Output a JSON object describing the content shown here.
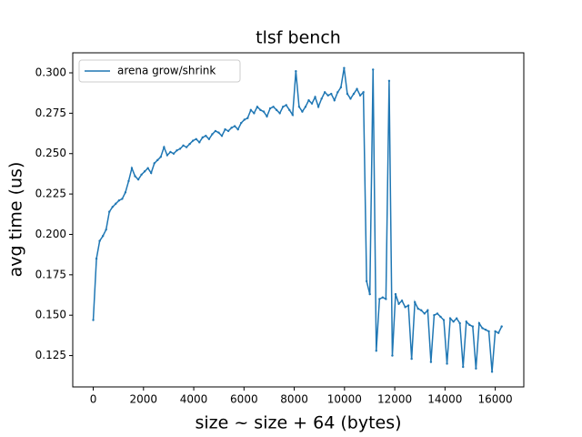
{
  "chart_data": {
    "type": "line",
    "title": "tlsf bench",
    "x_label": "size ~ size + 64 (bytes)",
    "y_label": "avg time (us)",
    "x": [
      0,
      128,
      256,
      384,
      512,
      640,
      768,
      896,
      1024,
      1152,
      1280,
      1408,
      1536,
      1664,
      1792,
      1920,
      2048,
      2176,
      2304,
      2432,
      2560,
      2688,
      2816,
      2944,
      3072,
      3200,
      3328,
      3456,
      3584,
      3712,
      3840,
      3968,
      4096,
      4224,
      4352,
      4480,
      4608,
      4736,
      4864,
      4992,
      5120,
      5248,
      5376,
      5504,
      5632,
      5760,
      5888,
      6016,
      6144,
      6272,
      6400,
      6528,
      6656,
      6784,
      6912,
      7040,
      7168,
      7296,
      7424,
      7552,
      7680,
      7808,
      7936,
      8064,
      8192,
      8320,
      8448,
      8576,
      8704,
      8832,
      8960,
      9088,
      9216,
      9344,
      9472,
      9600,
      9728,
      9856,
      9984,
      10112,
      10240,
      10368,
      10496,
      10624,
      10752,
      10880,
      11008,
      11136,
      11264,
      11392,
      11520,
      11648,
      11776,
      11904,
      12032,
      12160,
      12288,
      12416,
      12544,
      12672,
      12800,
      12928,
      13056,
      13184,
      13312,
      13440,
      13568,
      13696,
      13824,
      13952,
      14080,
      14208,
      14336,
      14464,
      14592,
      14720,
      14848,
      14976,
      15104,
      15232,
      15360,
      15488,
      15616,
      15744,
      15872,
      16000,
      16128,
      16256
    ],
    "series": [
      {
        "name": "arena grow/shrink",
        "color": "#1f77b4",
        "values": [
          0.147,
          0.185,
          0.196,
          0.199,
          0.203,
          0.214,
          0.217,
          0.219,
          0.221,
          0.222,
          0.226,
          0.233,
          0.241,
          0.236,
          0.234,
          0.237,
          0.239,
          0.241,
          0.238,
          0.244,
          0.246,
          0.248,
          0.254,
          0.249,
          0.251,
          0.25,
          0.252,
          0.253,
          0.255,
          0.254,
          0.256,
          0.258,
          0.259,
          0.257,
          0.26,
          0.261,
          0.259,
          0.262,
          0.264,
          0.263,
          0.261,
          0.265,
          0.264,
          0.266,
          0.267,
          0.265,
          0.269,
          0.271,
          0.272,
          0.277,
          0.275,
          0.279,
          0.277,
          0.276,
          0.273,
          0.278,
          0.279,
          0.277,
          0.275,
          0.279,
          0.28,
          0.277,
          0.274,
          0.301,
          0.279,
          0.276,
          0.279,
          0.283,
          0.281,
          0.285,
          0.279,
          0.284,
          0.288,
          0.286,
          0.287,
          0.283,
          0.288,
          0.291,
          0.303,
          0.287,
          0.284,
          0.287,
          0.29,
          0.286,
          0.288,
          0.171,
          0.163,
          0.302,
          0.128,
          0.16,
          0.161,
          0.16,
          0.295,
          0.125,
          0.163,
          0.157,
          0.159,
          0.155,
          0.156,
          0.123,
          0.158,
          0.154,
          0.153,
          0.151,
          0.153,
          0.121,
          0.15,
          0.151,
          0.149,
          0.147,
          0.12,
          0.148,
          0.146,
          0.148,
          0.145,
          0.118,
          0.146,
          0.144,
          0.143,
          0.117,
          0.145,
          0.142,
          0.141,
          0.14,
          0.115,
          0.14,
          0.139,
          0.143
        ]
      }
    ],
    "xlim": [
      -816,
      17136
    ],
    "xticks": [
      0,
      2000,
      4000,
      6000,
      8000,
      10000,
      12000,
      14000,
      16000
    ],
    "ylim": [
      0.1056,
      0.3124
    ],
    "yticks": [
      0.125,
      {
        "value": 0.15,
        "label": "0.150"
      },
      0.175,
      {
        "value": 0.2,
        "label": "0.200"
      },
      0.225,
      {
        "value": 0.25,
        "label": "0.250"
      },
      0.275,
      {
        "value": 0.3,
        "label": "0.300"
      }
    ],
    "legend": "upper left"
  }
}
